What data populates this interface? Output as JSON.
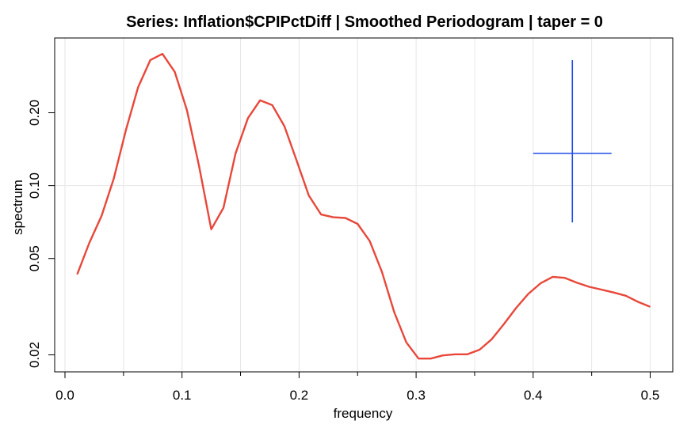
{
  "chart_data": {
    "type": "line",
    "title": "Series: Inflation$CPIPctDiff  |  Smoothed Periodogram  |  taper = 0",
    "xlabel": "frequency",
    "ylabel": "spectrum",
    "y_scale": "log",
    "grid": true,
    "xlim": [
      0.0,
      0.5
    ],
    "x_ticks": [
      "0.0",
      "0.1",
      "0.2",
      "0.3",
      "0.4",
      "0.5"
    ],
    "y_ticks": [
      "0.02",
      "0.05",
      "0.10",
      "0.20"
    ],
    "series": [
      {
        "color": "#e8473a",
        "x": [
          0.0104,
          0.0208,
          0.0313,
          0.0417,
          0.0521,
          0.0625,
          0.0729,
          0.0833,
          0.0938,
          0.1042,
          0.1146,
          0.125,
          0.1354,
          0.1458,
          0.1563,
          0.1667,
          0.1771,
          0.1875,
          0.1979,
          0.2083,
          0.2188,
          0.2292,
          0.2396,
          0.25,
          0.2604,
          0.2708,
          0.2813,
          0.2917,
          0.3021,
          0.3125,
          0.3229,
          0.3333,
          0.3438,
          0.3542,
          0.3646,
          0.375,
          0.3854,
          0.3958,
          0.4063,
          0.4167,
          0.4271,
          0.4375,
          0.4479,
          0.4583,
          0.4688,
          0.4792,
          0.4896,
          0.5
        ],
        "y": [
          0.043,
          0.058,
          0.075,
          0.107,
          0.17,
          0.255,
          0.33,
          0.35,
          0.295,
          0.205,
          0.12,
          0.066,
          0.081,
          0.136,
          0.19,
          0.225,
          0.215,
          0.176,
          0.127,
          0.091,
          0.076,
          0.074,
          0.0735,
          0.0695,
          0.059,
          0.044,
          0.03,
          0.0225,
          0.0193,
          0.0193,
          0.0199,
          0.0201,
          0.0201,
          0.021,
          0.0232,
          0.0268,
          0.0312,
          0.0357,
          0.0395,
          0.042,
          0.0416,
          0.0397,
          0.0382,
          0.0372,
          0.0362,
          0.0351,
          0.0331,
          0.0316
        ]
      }
    ],
    "bandwidth_marker": {
      "color": "#1f4de8",
      "center_x": 0.4335,
      "center_y": 0.136,
      "x_span": [
        0.4,
        0.467
      ],
      "y_span": [
        0.0705,
        0.33
      ]
    }
  }
}
